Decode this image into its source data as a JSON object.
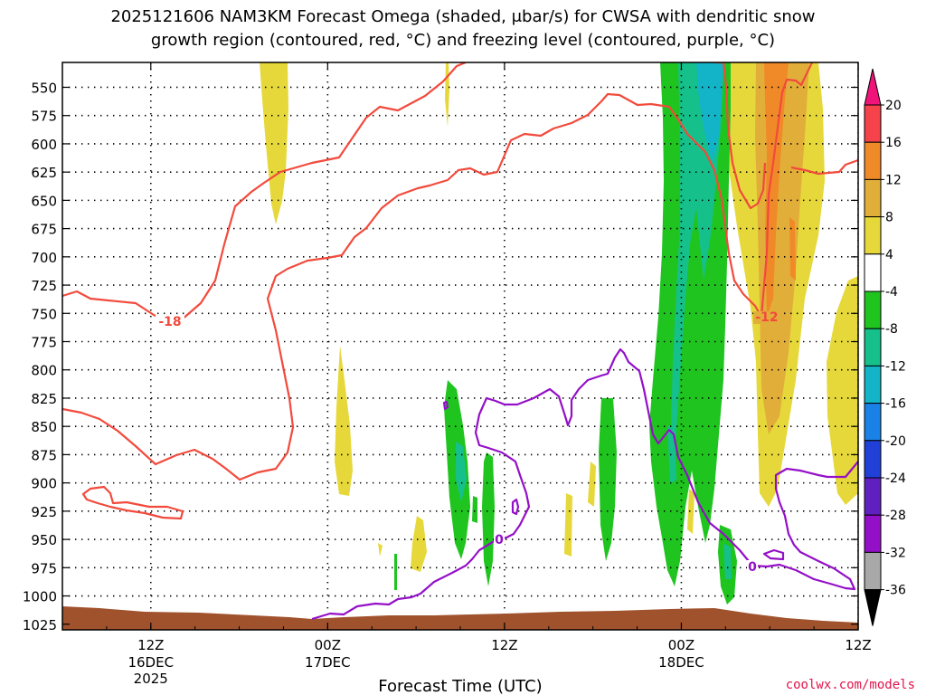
{
  "chart_data": {
    "type": "cross-section",
    "title_line1": "2025121606 NAM3KM Forecast Omega (shaded, μbar/s) for CWSA with dendritic snow",
    "title_line2": "growth region (contoured, red, °C) and freezing level (contoured, purple, °C)",
    "xlabel": "Forecast Time (UTC)",
    "credit": "coolwx.com/models",
    "y_axis": {
      "ticks": [
        550,
        575,
        600,
        625,
        650,
        675,
        700,
        725,
        750,
        775,
        800,
        825,
        850,
        875,
        900,
        925,
        950,
        975,
        1000,
        1025
      ],
      "range": [
        528,
        1030
      ],
      "grid": true
    },
    "x_axis": {
      "range_hours": [
        0,
        54
      ],
      "ticks": [
        {
          "hour": 6,
          "line1": "12Z",
          "line2": "16DEC",
          "line3": "2025"
        },
        {
          "hour": 18,
          "line1": "00Z",
          "line2": "17DEC",
          "line3": ""
        },
        {
          "hour": 30,
          "line1": "12Z",
          "line2": "",
          "line3": ""
        },
        {
          "hour": 42,
          "line1": "00Z",
          "line2": "18DEC",
          "line3": ""
        },
        {
          "hour": 54,
          "line1": "12Z",
          "line2": "",
          "line3": ""
        }
      ]
    },
    "colorbar": {
      "labels": [
        "20",
        "16",
        "12",
        "8",
        "4",
        "-4",
        "-8",
        "-12",
        "-16",
        "-20",
        "-24",
        "-28",
        "-32",
        "-36"
      ],
      "colors": [
        "#f0147a",
        "#f5424b",
        "#f08a28",
        "#e2ae3a",
        "#e6d83a",
        "#ffffff",
        "#1fc41f",
        "#16c08a",
        "#13b4c8",
        "#1a82e6",
        "#2040d8",
        "#6020c0",
        "#9410c8",
        "#a8a8a8",
        "#000000"
      ]
    },
    "contour_labels": {
      "dgz_cold": "-18",
      "dgz_warm": "-12",
      "freezing": "0"
    },
    "colors": {
      "dgz": "#f24a3c",
      "freezing": "#9410c8",
      "terrain": "#a0522d"
    }
  }
}
